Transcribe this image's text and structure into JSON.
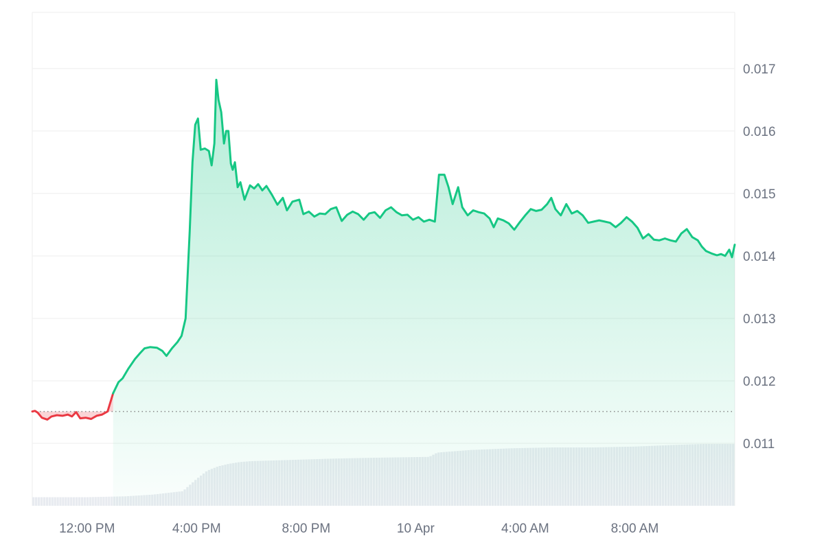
{
  "chart_data": {
    "type": "area",
    "title": "",
    "xlabel": "",
    "ylabel": "",
    "ylim": [
      0.01,
      0.0179
    ],
    "y_ticks": [
      "0.011",
      "0.012",
      "0.013",
      "0.014",
      "0.015",
      "0.016",
      "0.017"
    ],
    "x_ticks": [
      {
        "label": "12:00 PM",
        "hour": 2
      },
      {
        "label": "4:00 PM",
        "hour": 6
      },
      {
        "label": "8:00 PM",
        "hour": 10
      },
      {
        "label": "10 Apr",
        "hour": 14
      },
      {
        "label": "4:00 AM",
        "hour": 18
      },
      {
        "label": "8:00 AM",
        "hour": 22
      }
    ],
    "baseline": 0.01151,
    "grid": true,
    "colors": {
      "up": "#16c784",
      "down": "#ea3943",
      "grid": "#eeeeee",
      "volume": "#e8ebf0",
      "baseline": "#888888"
    },
    "series": [
      {
        "values": [
          [
            0.0,
            0.01151
          ],
          [
            0.1,
            0.01152
          ],
          [
            0.2,
            0.01149
          ],
          [
            0.35,
            0.01141
          ],
          [
            0.55,
            0.01138
          ],
          [
            0.7,
            0.01143
          ],
          [
            0.9,
            0.01145
          ],
          [
            1.1,
            0.01144
          ],
          [
            1.3,
            0.01146
          ],
          [
            1.45,
            0.01143
          ],
          [
            1.6,
            0.0115
          ],
          [
            1.75,
            0.0114
          ],
          [
            1.95,
            0.01141
          ],
          [
            2.15,
            0.01139
          ],
          [
            2.35,
            0.01144
          ],
          [
            2.55,
            0.01146
          ],
          [
            2.75,
            0.01151
          ],
          [
            2.95,
            0.0118
          ],
          [
            3.15,
            0.01198
          ],
          [
            3.3,
            0.01204
          ],
          [
            3.5,
            0.01219
          ],
          [
            3.75,
            0.01235
          ],
          [
            3.95,
            0.01245
          ],
          [
            4.1,
            0.01252
          ],
          [
            4.3,
            0.01254
          ],
          [
            4.55,
            0.01253
          ],
          [
            4.75,
            0.01248
          ],
          [
            4.9,
            0.0124
          ],
          [
            5.1,
            0.01252
          ],
          [
            5.3,
            0.01262
          ],
          [
            5.45,
            0.01272
          ],
          [
            5.6,
            0.013
          ],
          [
            5.75,
            0.0144
          ],
          [
            5.85,
            0.0155
          ],
          [
            5.95,
            0.0161
          ],
          [
            6.05,
            0.0162
          ],
          [
            6.15,
            0.0157
          ],
          [
            6.3,
            0.01572
          ],
          [
            6.45,
            0.01568
          ],
          [
            6.55,
            0.01545
          ],
          [
            6.65,
            0.0158
          ],
          [
            6.72,
            0.01682
          ],
          [
            6.8,
            0.0165
          ],
          [
            6.9,
            0.0163
          ],
          [
            7.0,
            0.0158
          ],
          [
            7.08,
            0.016
          ],
          [
            7.16,
            0.016
          ],
          [
            7.25,
            0.01548
          ],
          [
            7.32,
            0.01538
          ],
          [
            7.4,
            0.0155
          ],
          [
            7.5,
            0.0151
          ],
          [
            7.6,
            0.01518
          ],
          [
            7.75,
            0.0149
          ],
          [
            7.95,
            0.01513
          ],
          [
            8.1,
            0.01508
          ],
          [
            8.25,
            0.01515
          ],
          [
            8.4,
            0.01505
          ],
          [
            8.55,
            0.01512
          ],
          [
            8.75,
            0.01498
          ],
          [
            8.95,
            0.01482
          ],
          [
            9.15,
            0.01493
          ],
          [
            9.3,
            0.01473
          ],
          [
            9.5,
            0.01487
          ],
          [
            9.75,
            0.0149
          ],
          [
            9.9,
            0.01467
          ],
          [
            10.1,
            0.01471
          ],
          [
            10.3,
            0.01463
          ],
          [
            10.5,
            0.01468
          ],
          [
            10.7,
            0.01467
          ],
          [
            10.9,
            0.01475
          ],
          [
            11.1,
            0.01478
          ],
          [
            11.3,
            0.01456
          ],
          [
            11.5,
            0.01466
          ],
          [
            11.7,
            0.01471
          ],
          [
            11.9,
            0.01467
          ],
          [
            12.1,
            0.01458
          ],
          [
            12.3,
            0.01468
          ],
          [
            12.5,
            0.0147
          ],
          [
            12.7,
            0.01461
          ],
          [
            12.9,
            0.01473
          ],
          [
            13.1,
            0.01478
          ],
          [
            13.3,
            0.0147
          ],
          [
            13.5,
            0.01465
          ],
          [
            13.7,
            0.01466
          ],
          [
            13.9,
            0.01458
          ],
          [
            14.1,
            0.01462
          ],
          [
            14.3,
            0.01455
          ],
          [
            14.5,
            0.01458
          ],
          [
            14.7,
            0.01455
          ],
          [
            14.85,
            0.0153
          ],
          [
            15.05,
            0.0153
          ],
          [
            15.2,
            0.0151
          ],
          [
            15.35,
            0.01483
          ],
          [
            15.55,
            0.0151
          ],
          [
            15.7,
            0.01478
          ],
          [
            15.9,
            0.01465
          ],
          [
            16.1,
            0.01473
          ],
          [
            16.3,
            0.0147
          ],
          [
            16.5,
            0.01468
          ],
          [
            16.7,
            0.0146
          ],
          [
            16.85,
            0.01446
          ],
          [
            17.0,
            0.0146
          ],
          [
            17.2,
            0.01457
          ],
          [
            17.4,
            0.01452
          ],
          [
            17.6,
            0.01442
          ],
          [
            17.8,
            0.01454
          ],
          [
            18.0,
            0.01465
          ],
          [
            18.2,
            0.01475
          ],
          [
            18.4,
            0.01472
          ],
          [
            18.6,
            0.01474
          ],
          [
            18.8,
            0.01483
          ],
          [
            18.95,
            0.01493
          ],
          [
            19.1,
            0.01475
          ],
          [
            19.3,
            0.01465
          ],
          [
            19.5,
            0.01483
          ],
          [
            19.7,
            0.01468
          ],
          [
            19.9,
            0.01472
          ],
          [
            20.1,
            0.01465
          ],
          [
            20.3,
            0.01453
          ],
          [
            20.5,
            0.01455
          ],
          [
            20.7,
            0.01457
          ],
          [
            20.9,
            0.01455
          ],
          [
            21.1,
            0.01453
          ],
          [
            21.3,
            0.01446
          ],
          [
            21.5,
            0.01453
          ],
          [
            21.7,
            0.01462
          ],
          [
            21.9,
            0.01455
          ],
          [
            22.1,
            0.01445
          ],
          [
            22.3,
            0.01428
          ],
          [
            22.5,
            0.01435
          ],
          [
            22.7,
            0.01426
          ],
          [
            22.9,
            0.01425
          ],
          [
            23.1,
            0.01428
          ],
          [
            23.3,
            0.01425
          ],
          [
            23.5,
            0.01423
          ],
          [
            23.7,
            0.01436
          ],
          [
            23.9,
            0.01443
          ],
          [
            24.1,
            0.0143
          ],
          [
            24.3,
            0.01425
          ],
          [
            24.45,
            0.01415
          ],
          [
            24.6,
            0.01408
          ],
          [
            24.8,
            0.01404
          ],
          [
            25.0,
            0.01401
          ],
          [
            25.15,
            0.01403
          ],
          [
            25.3,
            0.014
          ],
          [
            25.45,
            0.0141
          ],
          [
            25.55,
            0.01398
          ],
          [
            25.65,
            0.01418
          ]
        ]
      }
    ],
    "volume": {
      "hours": [
        0.0,
        2.0,
        3.4,
        4.4,
        5.5,
        6.0,
        6.4,
        6.8,
        7.2,
        7.6,
        8.0,
        9.0,
        10.0,
        11.0,
        12.5,
        14.5,
        14.8,
        16.0,
        17.5,
        19.0,
        20.5,
        22.0,
        23.5,
        24.5,
        25.65
      ],
      "values": [
        0.1,
        0.1,
        0.11,
        0.13,
        0.17,
        0.31,
        0.41,
        0.46,
        0.49,
        0.51,
        0.52,
        0.53,
        0.54,
        0.55,
        0.56,
        0.57,
        0.62,
        0.65,
        0.67,
        0.68,
        0.68,
        0.69,
        0.71,
        0.72,
        0.72
      ]
    }
  }
}
